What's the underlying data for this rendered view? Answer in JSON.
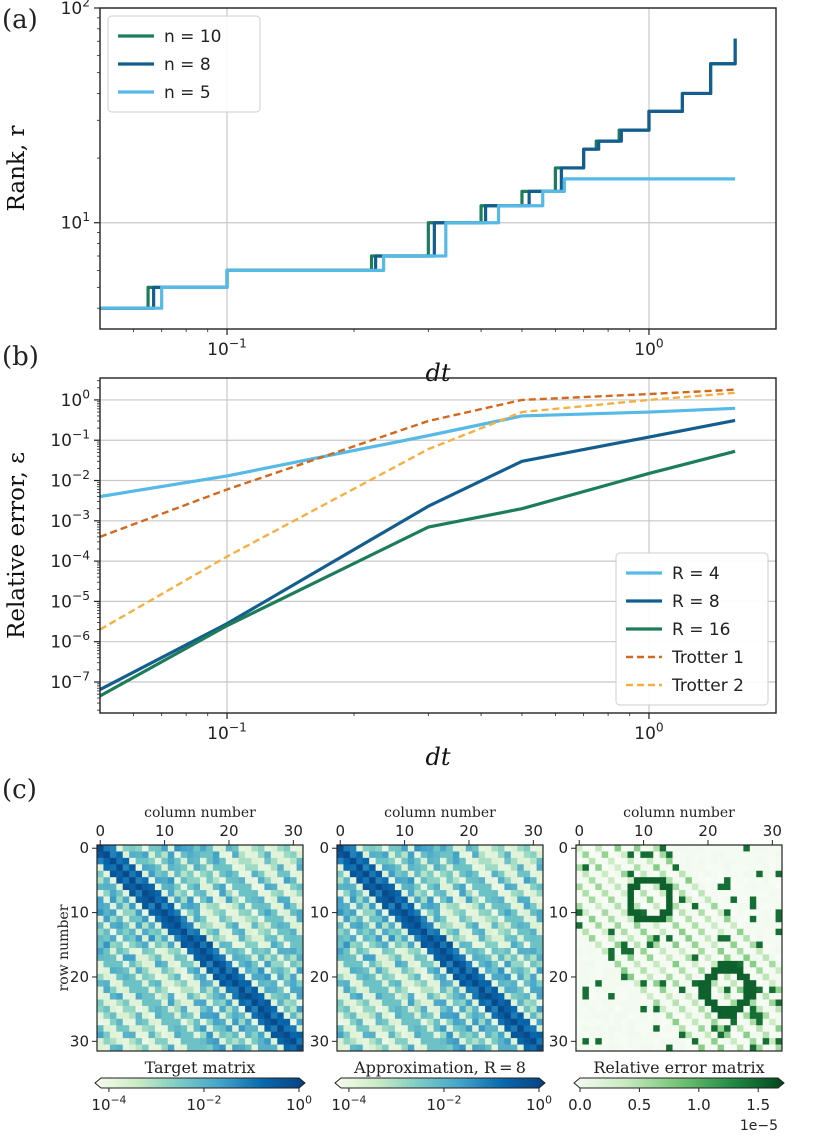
{
  "panel_labels": {
    "a": "(a)",
    "b": "(b)",
    "c": "(c)"
  },
  "chart_data": [
    {
      "id": "a",
      "type": "line",
      "xscale": "log",
      "yscale": "log",
      "xlabel": "dt",
      "ylabel": "Rank, r",
      "xlim": [
        0.05,
        2.0
      ],
      "ylim": [
        3.2,
        100
      ],
      "xticks": [
        {
          "v": 0.1,
          "b": "10",
          "e": "−1"
        },
        {
          "v": 1.0,
          "b": "10",
          "e": "0"
        }
      ],
      "yticks": [
        {
          "v": 10,
          "b": "10",
          "e": "1"
        },
        {
          "v": 100,
          "b": "10",
          "e": "2"
        }
      ],
      "grid": true,
      "legend_position": "top-left",
      "series": [
        {
          "name": "n = 10",
          "color": "#1d7d5a",
          "step": true,
          "x": [
            0.05,
            0.065,
            0.1,
            0.22,
            0.3,
            0.4,
            0.5,
            0.6,
            0.7,
            0.75,
            0.85,
            1.0,
            1.2,
            1.4,
            1.6
          ],
          "y": [
            4,
            5,
            6,
            7,
            10,
            12,
            14,
            18,
            22,
            24,
            27,
            33,
            40,
            55,
            72
          ]
        },
        {
          "name": "n = 8",
          "color": "#145e8f",
          "step": true,
          "x": [
            0.05,
            0.067,
            0.1,
            0.225,
            0.31,
            0.41,
            0.52,
            0.62,
            0.7,
            0.76,
            0.86,
            1.0,
            1.2,
            1.4,
            1.6
          ],
          "y": [
            4,
            5,
            6,
            7,
            10,
            12,
            14,
            18,
            22,
            24,
            27,
            33,
            40,
            55,
            72
          ]
        },
        {
          "name": "n = 5",
          "color": "#56b9e6",
          "step": true,
          "x": [
            0.05,
            0.07,
            0.1,
            0.235,
            0.33,
            0.44,
            0.56,
            0.63,
            1.6
          ],
          "y": [
            4,
            5,
            6,
            7,
            10,
            12,
            14,
            16,
            16
          ]
        }
      ]
    },
    {
      "id": "b",
      "type": "line",
      "xscale": "log",
      "yscale": "log",
      "xlabel": "dt",
      "ylabel": "Relative error, ε",
      "xlim": [
        0.05,
        2.0
      ],
      "ylim": [
        1.7e-08,
        3.5
      ],
      "xticks": [
        {
          "v": 0.1,
          "b": "10",
          "e": "−1"
        },
        {
          "v": 1.0,
          "b": "10",
          "e": "0"
        }
      ],
      "yticks": [
        {
          "v": 1e-07,
          "b": "10",
          "e": "−7"
        },
        {
          "v": 1e-06,
          "b": "10",
          "e": "−6"
        },
        {
          "v": 1e-05,
          "b": "10",
          "e": "−5"
        },
        {
          "v": 0.0001,
          "b": "10",
          "e": "−4"
        },
        {
          "v": 0.001,
          "b": "10",
          "e": "−3"
        },
        {
          "v": 0.01,
          "b": "10",
          "e": "−2"
        },
        {
          "v": 0.1,
          "b": "10",
          "e": "−1"
        },
        {
          "v": 1,
          "b": "10",
          "e": "0"
        }
      ],
      "grid": true,
      "legend_position": "bottom-right",
      "series": [
        {
          "name": "R = 4",
          "color": "#56b9e6",
          "dash": false,
          "x": [
            0.05,
            0.1,
            0.3,
            0.5,
            1.0,
            1.6
          ],
          "y": [
            0.004,
            0.013,
            0.13,
            0.4,
            0.5,
            0.62
          ]
        },
        {
          "name": "R = 8",
          "color": "#145e8f",
          "dash": false,
          "x": [
            0.05,
            0.1,
            0.3,
            0.5,
            1.0,
            1.6
          ],
          "y": [
            6.5e-08,
            2.8e-06,
            0.0023,
            0.03,
            0.12,
            0.31
          ]
        },
        {
          "name": "R = 16",
          "color": "#1d7d5a",
          "dash": false,
          "x": [
            0.05,
            0.1,
            0.3,
            0.5,
            1.0,
            1.6
          ],
          "y": [
            4.5e-08,
            2.5e-06,
            0.0007,
            0.002,
            0.015,
            0.053
          ]
        },
        {
          "name": "Trotter 1",
          "color": "#d2691e",
          "dash": true,
          "x": [
            0.05,
            0.1,
            0.3,
            0.5,
            1.0,
            1.6
          ],
          "y": [
            0.0004,
            0.006,
            0.3,
            1.0,
            1.4,
            1.8
          ]
        },
        {
          "name": "Trotter 2",
          "color": "#f5b041",
          "dash": true,
          "x": [
            0.05,
            0.1,
            0.3,
            0.5,
            1.0,
            1.6
          ],
          "y": [
            2e-06,
            0.00013,
            0.06,
            0.5,
            1.0,
            1.5
          ]
        }
      ]
    },
    {
      "id": "c",
      "type": "heatmap",
      "size": 32,
      "xlabel": "column number",
      "ylabel": "row number",
      "ticks": [
        "0",
        "10",
        "20",
        "30"
      ],
      "tick_values": [
        0,
        10,
        20,
        30
      ],
      "panels": [
        {
          "title": "Target matrix",
          "colormap": "blues",
          "colorbar_ticks": [
            {
              "b": "10",
              "e": "−4"
            },
            {
              "b": "10",
              "e": "−2"
            },
            {
              "b": "10",
              "e": "0"
            }
          ]
        },
        {
          "title": "Approximation, R = 8",
          "colormap": "blues",
          "colorbar_ticks": [
            {
              "b": "10",
              "e": "−4"
            },
            {
              "b": "10",
              "e": "−2"
            },
            {
              "b": "10",
              "e": "0"
            }
          ]
        },
        {
          "title": "Relative error matrix",
          "colormap": "greens",
          "colorbar_ticks": [
            {
              "b": "0.0",
              "e": ""
            },
            {
              "b": "0.5",
              "e": ""
            },
            {
              "b": "1.0",
              "e": ""
            },
            {
              "b": "1.5",
              "e": ""
            }
          ],
          "colorbar_offset": "1e−5"
        }
      ]
    }
  ]
}
